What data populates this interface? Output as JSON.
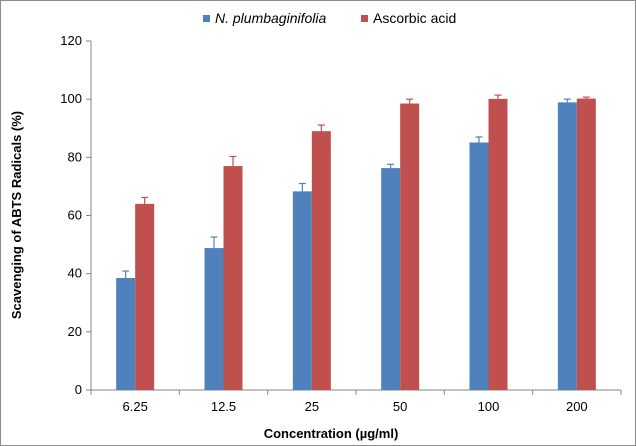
{
  "chart_data": {
    "type": "bar",
    "title": "",
    "xlabel": "Concentration (µg/ml)",
    "ylabel": "Scavenging of ABTS Radicals (%)",
    "ylim": [
      0,
      120
    ],
    "yticks": [
      0,
      20,
      40,
      60,
      80,
      100,
      120
    ],
    "categories": [
      "6.25",
      "12.5",
      "25",
      "50",
      "100",
      "200"
    ],
    "legend_position": "top-center",
    "grid": false,
    "error_bars": true,
    "series": [
      {
        "name": "N. plumbaginifolia",
        "name_style": "italic",
        "color": "#4f81bd",
        "values": [
          38.5,
          48.8,
          68.3,
          76.3,
          85.1,
          98.9
        ],
        "errors": [
          2.4,
          3.8,
          2.7,
          1.3,
          1.9,
          1.1
        ]
      },
      {
        "name": "Ascorbic acid",
        "color": "#c0504d",
        "values": [
          64.0,
          77.0,
          89.0,
          98.5,
          100.1,
          100.2
        ],
        "errors": [
          2.2,
          3.3,
          2.1,
          1.5,
          1.3,
          0.5
        ]
      }
    ]
  }
}
